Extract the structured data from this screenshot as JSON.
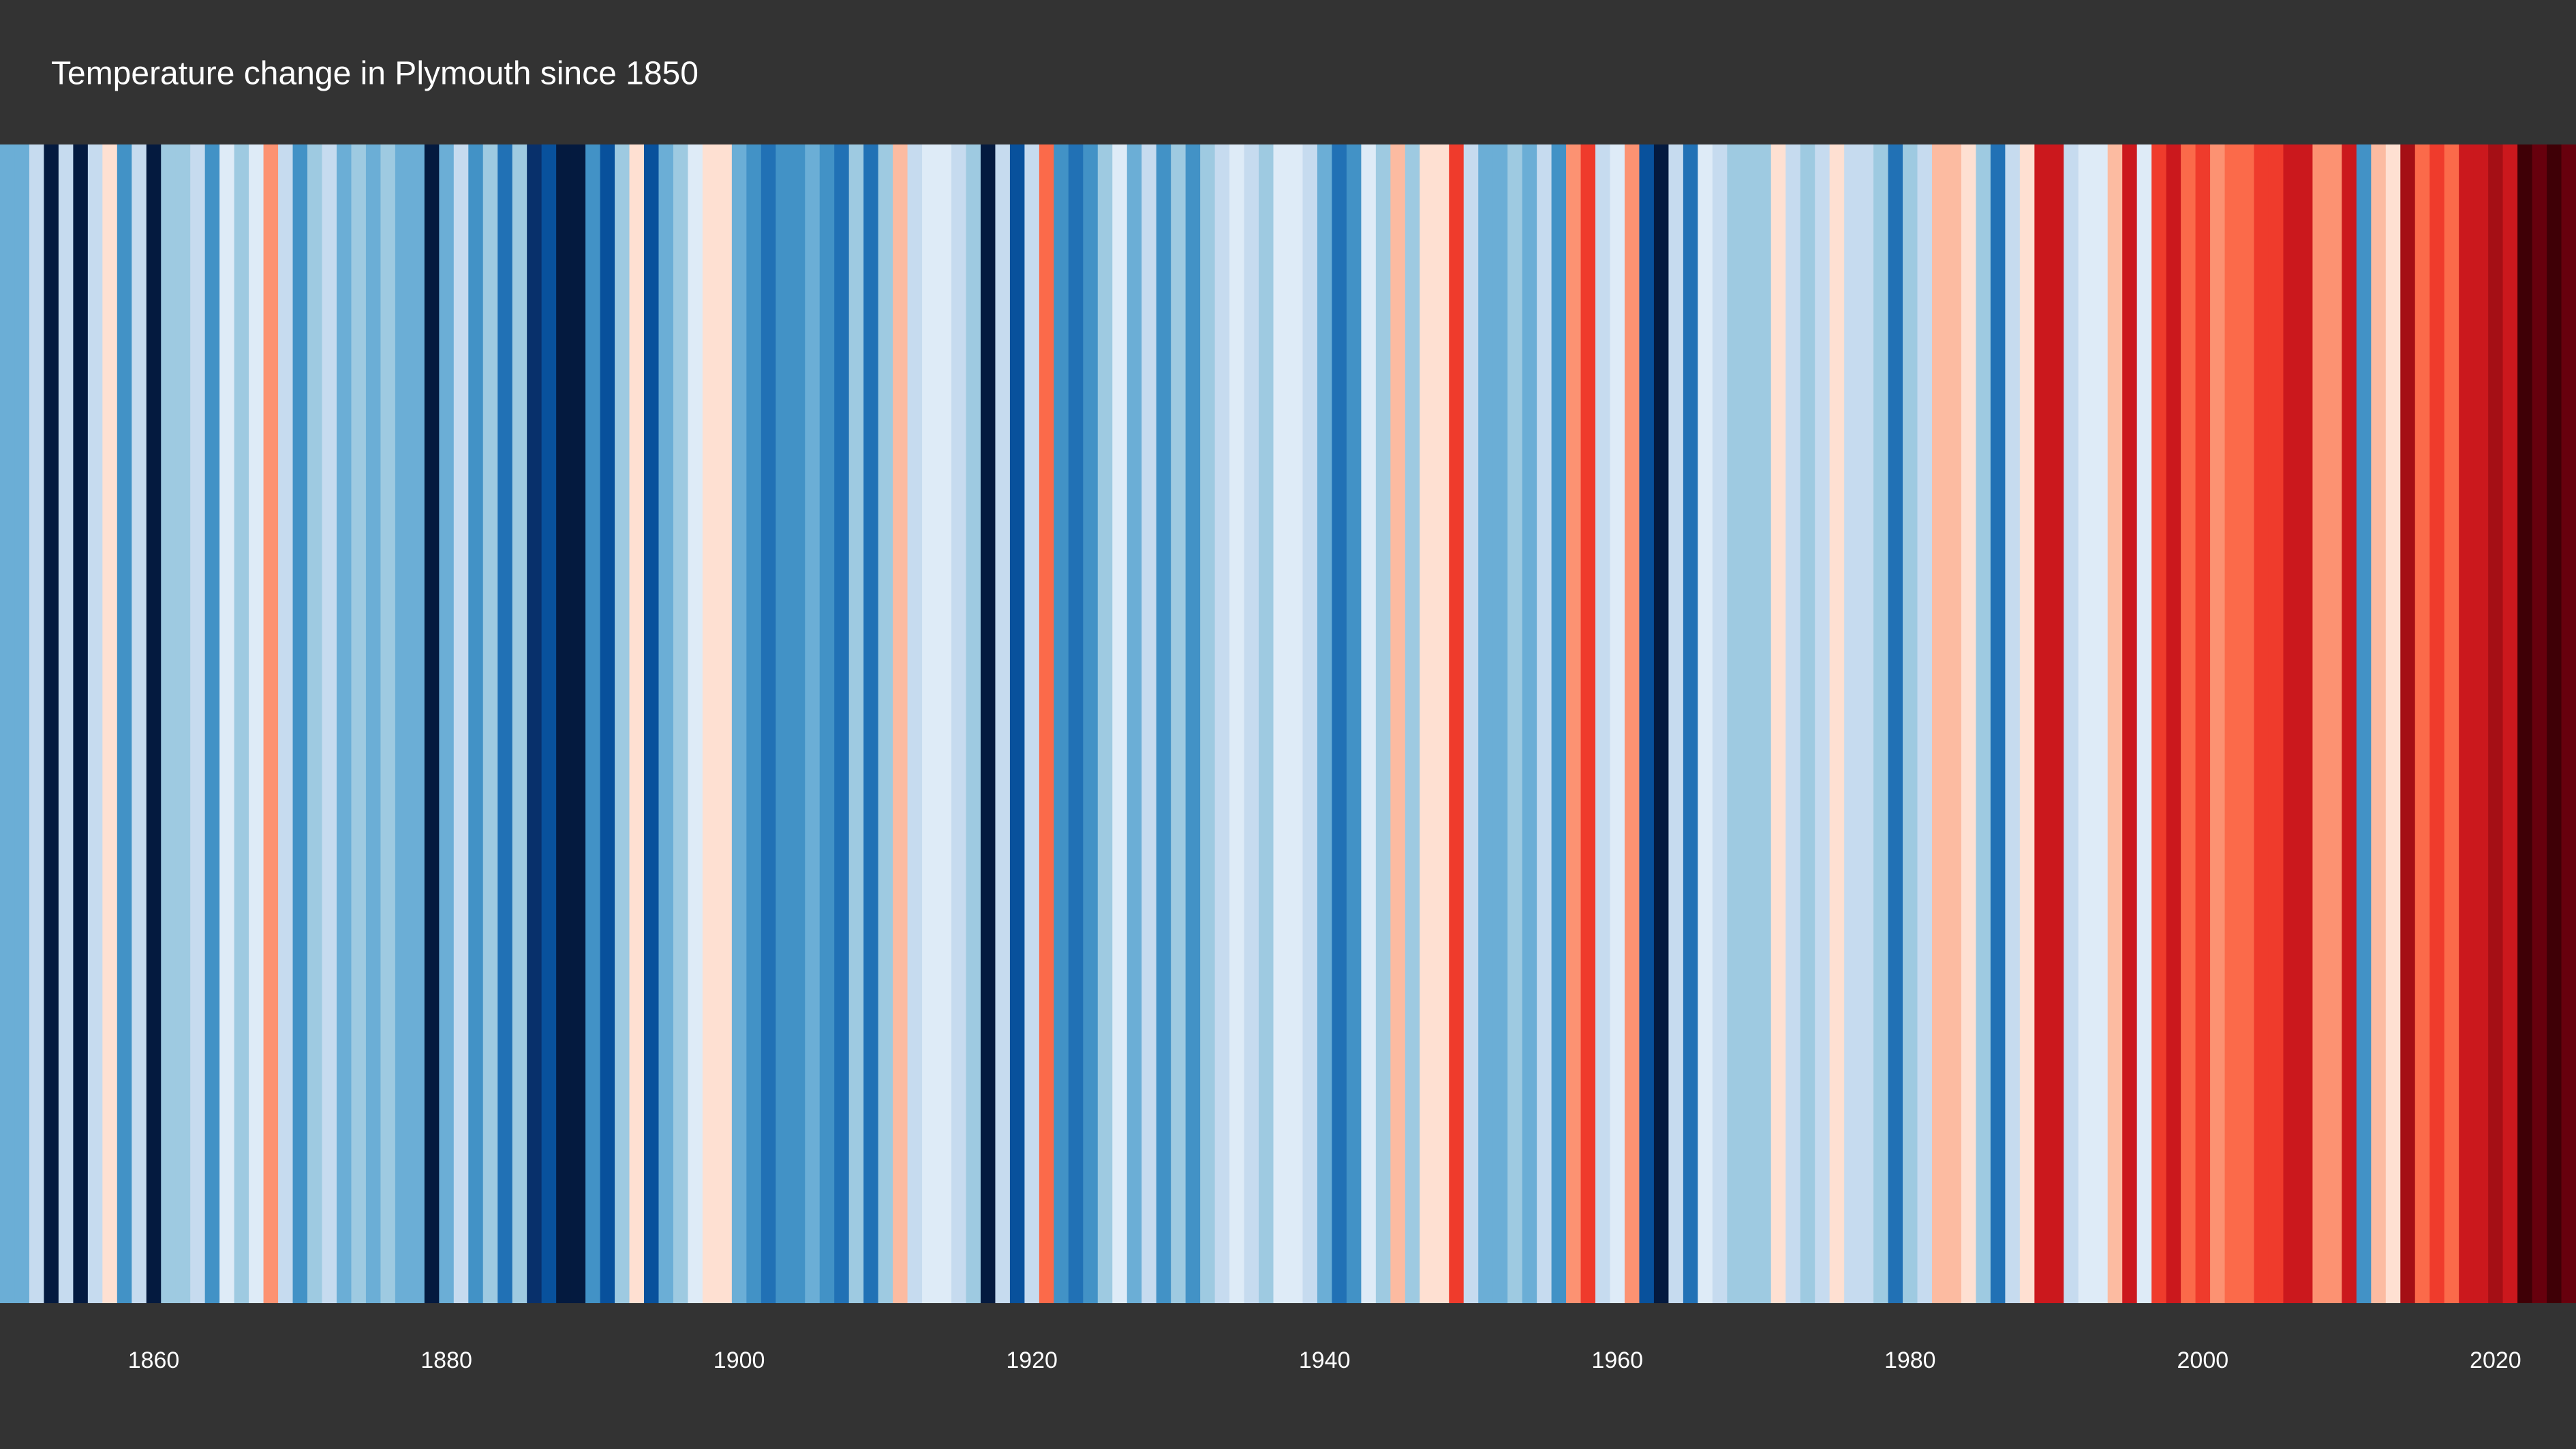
{
  "chart_data": {
    "type": "stripes",
    "title": "Temperature change in Plymouth since 1850",
    "x": [
      1850,
      1851,
      1852,
      1853,
      1854,
      1855,
      1856,
      1857,
      1858,
      1859,
      1860,
      1861,
      1862,
      1863,
      1864,
      1865,
      1866,
      1867,
      1868,
      1869,
      1870,
      1871,
      1872,
      1873,
      1874,
      1875,
      1876,
      1877,
      1878,
      1879,
      1880,
      1881,
      1882,
      1883,
      1884,
      1885,
      1886,
      1887,
      1888,
      1889,
      1890,
      1891,
      1892,
      1893,
      1894,
      1895,
      1896,
      1897,
      1898,
      1899,
      1900,
      1901,
      1902,
      1903,
      1904,
      1905,
      1906,
      1907,
      1908,
      1909,
      1910,
      1911,
      1912,
      1913,
      1914,
      1915,
      1916,
      1917,
      1918,
      1919,
      1920,
      1921,
      1922,
      1923,
      1924,
      1925,
      1926,
      1927,
      1928,
      1929,
      1930,
      1931,
      1932,
      1933,
      1934,
      1935,
      1936,
      1937,
      1938,
      1939,
      1940,
      1941,
      1942,
      1943,
      1944,
      1945,
      1946,
      1947,
      1948,
      1949,
      1950,
      1951,
      1952,
      1953,
      1954,
      1955,
      1956,
      1957,
      1958,
      1959,
      1960,
      1961,
      1962,
      1963,
      1964,
      1965,
      1966,
      1967,
      1968,
      1969,
      1970,
      1971,
      1972,
      1973,
      1974,
      1975,
      1976,
      1977,
      1978,
      1979,
      1980,
      1981,
      1982,
      1983,
      1984,
      1985,
      1986,
      1987,
      1988,
      1989,
      1990,
      1991,
      1992,
      1993,
      1994,
      1995,
      1996,
      1997,
      1998,
      1999,
      2000,
      2001,
      2002,
      2003,
      2004,
      2005,
      2006,
      2007,
      2008,
      2009,
      2010,
      2011,
      2012,
      2013,
      2014,
      2015,
      2016,
      2017,
      2018,
      2019,
      2020,
      2021,
      2022,
      2023,
      2024,
      2025
    ],
    "values": [
      -0.35,
      -0.35,
      -0.15,
      -0.85,
      -0.15,
      -0.85,
      -0.15,
      0.05,
      -0.45,
      -0.15,
      -0.85,
      -0.25,
      -0.25,
      -0.15,
      -0.45,
      -0.05,
      -0.25,
      -0.05,
      0.25,
      -0.15,
      -0.45,
      -0.25,
      -0.15,
      -0.35,
      -0.25,
      -0.35,
      -0.25,
      -0.35,
      -0.35,
      -0.85,
      -0.35,
      -0.15,
      -0.45,
      -0.25,
      -0.55,
      -0.25,
      -0.75,
      -0.65,
      -0.85,
      -0.85,
      -0.45,
      -0.65,
      -0.25,
      0.05,
      -0.65,
      -0.35,
      -0.25,
      -0.05,
      0.05,
      0.05,
      -0.35,
      -0.45,
      -0.55,
      -0.45,
      -0.45,
      -0.35,
      -0.45,
      -0.55,
      -0.25,
      -0.55,
      -0.25,
      0.15,
      -0.15,
      -0.05,
      -0.05,
      -0.15,
      -0.25,
      -0.85,
      -0.15,
      -0.65,
      -0.15,
      0.35,
      -0.45,
      -0.55,
      -0.45,
      -0.25,
      -0.05,
      -0.35,
      -0.15,
      -0.45,
      -0.25,
      -0.45,
      -0.25,
      -0.15,
      -0.05,
      -0.15,
      -0.25,
      -0.05,
      -0.05,
      -0.15,
      -0.35,
      -0.55,
      -0.45,
      -0.05,
      -0.25,
      0.15,
      -0.25,
      0.05,
      0.05,
      0.45,
      -0.15,
      -0.35,
      -0.35,
      -0.25,
      -0.35,
      -0.15,
      -0.45,
      0.25,
      0.45,
      -0.15,
      -0.05,
      0.25,
      -0.65,
      -0.85,
      -0.15,
      -0.55,
      -0.05,
      -0.15,
      -0.25,
      -0.25,
      -0.25,
      0.05,
      -0.15,
      -0.25,
      -0.15,
      0.05,
      -0.15,
      -0.15,
      -0.25,
      -0.55,
      -0.25,
      -0.15,
      0.15,
      0.15,
      0.05,
      -0.25,
      -0.55,
      -0.15,
      0.05,
      0.55,
      0.55,
      -0.15,
      -0.05,
      -0.05,
      0.15,
      0.55,
      -0.05,
      0.45,
      0.55,
      0.35,
      0.45,
      0.25,
      0.35,
      0.35,
      0.45,
      0.45,
      0.55,
      0.55,
      0.25,
      0.25,
      0.55,
      -0.45,
      0.15,
      0.05,
      0.65,
      0.35,
      0.45,
      0.35,
      0.55,
      0.55,
      0.65,
      0.55,
      0.85,
      0.75,
      0.85,
      0.75
    ],
    "colors": [
      "#041a3f",
      "#08306b",
      "#08519c",
      "#2171b5",
      "#4292c6",
      "#6baed6",
      "#9ecae1",
      "#c6dbef",
      "#deebf7",
      "#fee0d2",
      "#fcbba1",
      "#fc9272",
      "#fb6a4a",
      "#ef3b2c",
      "#cb181d",
      "#a50f15",
      "#67000d",
      "#3f0006"
    ],
    "vlim": [
      -0.9,
      0.9
    ],
    "xlim": [
      1849.5,
      2025.5
    ],
    "xticks": [
      1860,
      1880,
      1900,
      1920,
      1940,
      1960,
      1980,
      2000,
      2020
    ]
  }
}
